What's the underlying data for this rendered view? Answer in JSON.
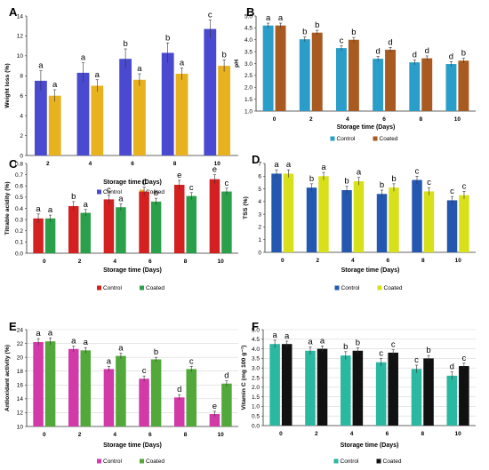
{
  "chart_data": [
    {
      "panel_letter": "A",
      "type": "bar",
      "categories": [
        "2",
        "4",
        "6",
        "8",
        "10"
      ],
      "xlabel": "Storage time (Days)",
      "ylabel": "Weight loss (%)",
      "ylim": [
        0,
        14
      ],
      "ytick_step": 2,
      "ytick_decimals": 0,
      "grid": false,
      "legend_position": "bottom",
      "series": [
        {
          "name": "Control",
          "color": "#4a4ad0",
          "values": [
            7.5,
            8.3,
            9.7,
            10.3,
            12.7
          ],
          "errors": [
            1.0,
            1.0,
            1.0,
            1.0,
            0.9
          ],
          "letters": [
            "a",
            "a",
            "b",
            "b",
            "c"
          ]
        },
        {
          "name": "Coated",
          "color": "#e8b21e",
          "values": [
            6.0,
            7.0,
            7.6,
            8.2,
            9.0
          ],
          "errors": [
            0.6,
            0.6,
            0.6,
            0.6,
            0.6
          ],
          "letters": [
            "a",
            "a",
            "a",
            "a",
            "b"
          ]
        }
      ]
    },
    {
      "panel_letter": "B",
      "type": "bar",
      "categories": [
        "0",
        "2",
        "4",
        "6",
        "8",
        "10"
      ],
      "xlabel": "Storage time (Days)",
      "ylabel": "pH",
      "ylim": [
        1,
        5
      ],
      "ytick_step": 0.5,
      "ytick_decimals": 1,
      "grid": false,
      "legend_position": "bottom",
      "series": [
        {
          "name": "Control",
          "color": "#2a9ec8",
          "values": [
            4.6,
            4.02,
            3.65,
            3.2,
            3.05,
            2.98
          ],
          "errors": [
            0.1,
            0.1,
            0.1,
            0.1,
            0.1,
            0.1
          ],
          "letters": [
            "a",
            "b",
            "c",
            "d",
            "d",
            "d"
          ]
        },
        {
          "name": "Coated",
          "color": "#a85a20",
          "values": [
            4.6,
            4.3,
            4.0,
            3.58,
            3.22,
            3.12
          ],
          "errors": [
            0.1,
            0.1,
            0.1,
            0.1,
            0.1,
            0.1
          ],
          "letters": [
            "a",
            "b",
            "b",
            "d",
            "d",
            "b"
          ]
        }
      ]
    },
    {
      "panel_letter": "C",
      "type": "bar",
      "categories": [
        "0",
        "2",
        "4",
        "6",
        "8",
        "10"
      ],
      "xlabel": "Storage time (Days)",
      "ylabel": "Titrable acidity (%)",
      "ylim": [
        0,
        0.8
      ],
      "ytick_step": 0.1,
      "ytick_decimals": 1,
      "grid": false,
      "legend_position": "bottom",
      "series": [
        {
          "name": "Control",
          "color": "#d42020",
          "values": [
            0.31,
            0.42,
            0.48,
            0.55,
            0.61,
            0.66
          ],
          "errors": [
            0.04,
            0.04,
            0.04,
            0.04,
            0.04,
            0.04
          ],
          "letters": [
            "a",
            "b",
            "c",
            "d",
            "e",
            "e"
          ]
        },
        {
          "name": "Coated",
          "color": "#2aa04a",
          "values": [
            0.31,
            0.36,
            0.41,
            0.46,
            0.51,
            0.55
          ],
          "errors": [
            0.03,
            0.03,
            0.03,
            0.03,
            0.03,
            0.03
          ],
          "letters": [
            "a",
            "a",
            "a",
            "b",
            "c",
            "c"
          ]
        }
      ]
    },
    {
      "panel_letter": "D",
      "type": "bar",
      "categories": [
        "0",
        "2",
        "4",
        "6",
        "8",
        "10"
      ],
      "xlabel": "Storage time (Days)",
      "ylabel": "TSS (%)",
      "ylim": [
        0,
        7
      ],
      "ytick_step": 1,
      "ytick_decimals": 0,
      "grid": false,
      "legend_position": "bottom",
      "series": [
        {
          "name": "Control",
          "color": "#2458b0",
          "values": [
            6.2,
            5.1,
            4.9,
            4.6,
            5.7,
            4.1
          ],
          "errors": [
            0.3,
            0.3,
            0.3,
            0.3,
            0.3,
            0.3
          ],
          "letters": [
            "a",
            "b",
            "b",
            "b",
            "c",
            "c"
          ]
        },
        {
          "name": "Coated",
          "color": "#d8e01a",
          "values": [
            6.2,
            6.0,
            5.6,
            5.1,
            4.8,
            4.5
          ],
          "errors": [
            0.3,
            0.3,
            0.3,
            0.3,
            0.3,
            0.3
          ],
          "letters": [
            "a",
            "a",
            "a",
            "b",
            "c",
            "c"
          ]
        }
      ]
    },
    {
      "panel_letter": "E",
      "type": "bar",
      "categories": [
        "0",
        "2",
        "4",
        "6",
        "8",
        "10"
      ],
      "xlabel": "Storage time (Days)",
      "ylabel": "Antioxidant activity (%)",
      "ylim": [
        10,
        24
      ],
      "ytick_step": 2,
      "ytick_decimals": 0,
      "grid": true,
      "legend_position": "bottom",
      "series": [
        {
          "name": "Control",
          "color": "#d23aa8",
          "values": [
            22.2,
            21.2,
            18.3,
            16.9,
            14.2,
            11.8
          ],
          "errors": [
            0.5,
            0.4,
            0.4,
            0.4,
            0.4,
            0.4
          ],
          "letters": [
            "a",
            "a",
            "a",
            "c",
            "d",
            "e"
          ]
        },
        {
          "name": "Coated",
          "color": "#52a83a",
          "values": [
            22.3,
            21.0,
            20.2,
            19.7,
            18.3,
            16.2
          ],
          "errors": [
            0.5,
            0.4,
            0.4,
            0.3,
            0.4,
            0.4
          ],
          "letters": [
            "a",
            "a",
            "a",
            "b",
            "c",
            "d"
          ]
        }
      ]
    },
    {
      "panel_letter": "F",
      "type": "bar",
      "categories": [
        "0",
        "2",
        "4",
        "6",
        "8",
        "10"
      ],
      "xlabel": "Storage time (Days)",
      "ylabel": "Vitamin C (mg 100 g⁻¹)",
      "ylim": [
        0,
        5
      ],
      "ytick_step": 0.5,
      "ytick_decimals": 1,
      "grid": true,
      "legend_position": "bottom",
      "series": [
        {
          "name": "Control",
          "color": "#2ab8a0",
          "values": [
            4.25,
            3.9,
            3.65,
            3.3,
            2.95,
            2.6
          ],
          "errors": [
            0.2,
            0.2,
            0.2,
            0.2,
            0.2,
            0.2
          ],
          "letters": [
            "a",
            "a",
            "b",
            "c",
            "c",
            "d"
          ]
        },
        {
          "name": "Coated",
          "color": "#111111",
          "values": [
            4.25,
            4.0,
            3.9,
            3.8,
            3.5,
            3.1
          ],
          "errors": [
            0.15,
            0.15,
            0.15,
            0.15,
            0.15,
            0.15
          ],
          "letters": [
            "a",
            "a",
            "b",
            "c",
            "b",
            "c"
          ]
        }
      ]
    }
  ]
}
